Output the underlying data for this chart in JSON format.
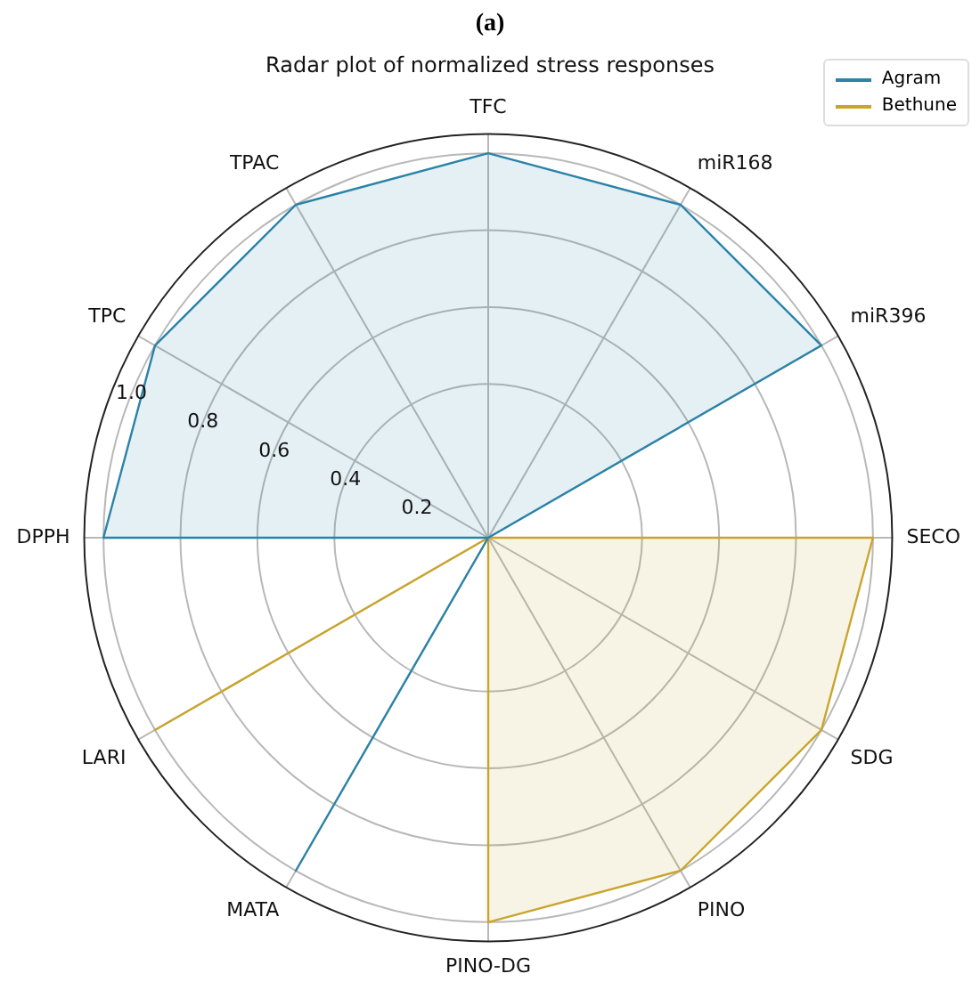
{
  "chart_data": {
    "type": "radar",
    "title": "Radar plot of normalized stress responses",
    "annotations": [
      "(a)"
    ],
    "categories": [
      "TFC",
      "miR168",
      "miR396",
      "SECO",
      "SDG",
      "PINO",
      "PINO-DG",
      "MATA",
      "LARI",
      "DPPH",
      "TPC",
      "TPAC"
    ],
    "series": [
      {
        "name": "Agram",
        "color": "#2b83a8",
        "values": [
          1,
          1,
          1,
          0,
          0,
          0,
          0,
          1,
          0,
          1,
          1,
          1
        ]
      },
      {
        "name": "Bethune",
        "color": "#c9a52c",
        "values": [
          0,
          0,
          0,
          1,
          1,
          1,
          1,
          0,
          1,
          0,
          0,
          0
        ]
      }
    ],
    "ylim": [
      0,
      1.05
    ],
    "yticks": [
      0.2,
      0.4,
      0.6,
      0.8,
      {
        "value": 1,
        "label": "1.0"
      }
    ],
    "grid": true,
    "legend": "top right",
    "marker": "none"
  }
}
